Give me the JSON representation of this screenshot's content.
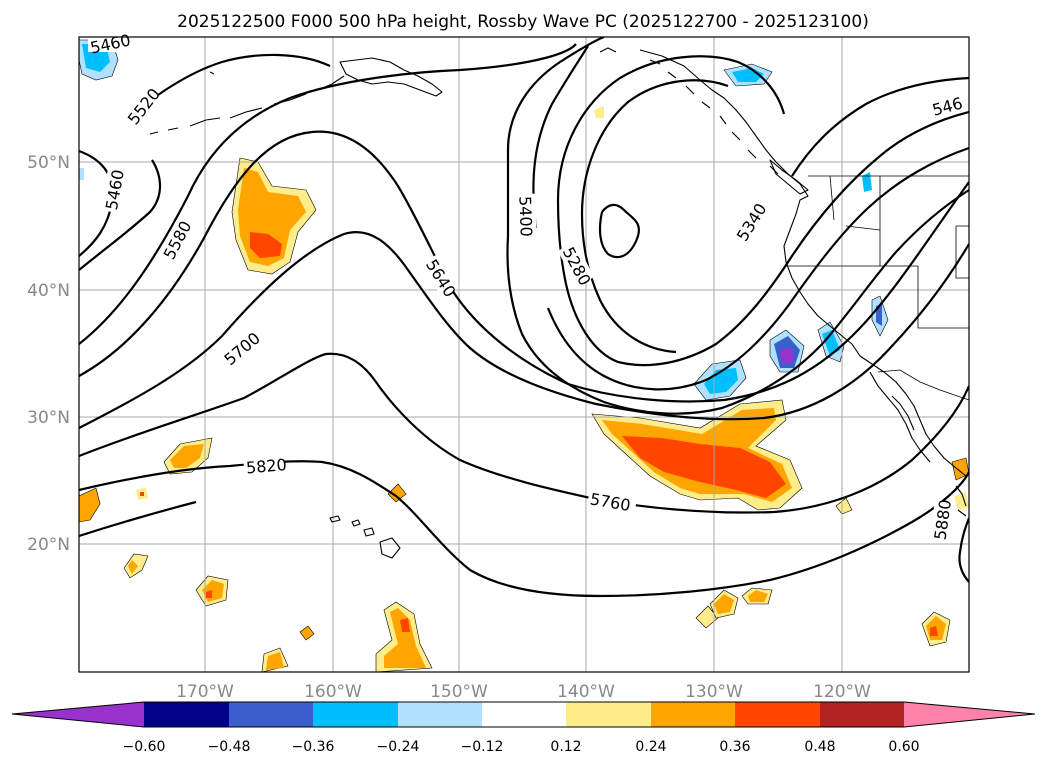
{
  "title": "2025122500 F000 500 hPa height, Rossby Wave PC (2025122700 - 2025123100)",
  "map": {
    "lat_labels": [
      "50°N",
      "40°N",
      "30°N",
      "20°N"
    ],
    "lon_labels": [
      "170°W",
      "160°W",
      "150°W",
      "140°W",
      "130°W",
      "120°W"
    ],
    "contour_labels": [
      "5460",
      "5520",
      "5460",
      "5580",
      "5700",
      "5820",
      "5640",
      "5400",
      "5280",
      "5340",
      "5760",
      "5880",
      "546"
    ]
  },
  "colorbar": {
    "colors": [
      "#9932cc",
      "#00008b",
      "#3a5fcd",
      "#00bfff",
      "#b0e2ff",
      "#ffffff",
      "#ffec8b",
      "#ffa500",
      "#ff4500",
      "#b22222",
      "#ff82ab"
    ],
    "tick_labels": [
      "−0.60",
      "−0.48",
      "−0.36",
      "−0.24",
      "−0.12",
      "0.12",
      "0.24",
      "0.36",
      "0.48",
      "0.60"
    ]
  }
}
